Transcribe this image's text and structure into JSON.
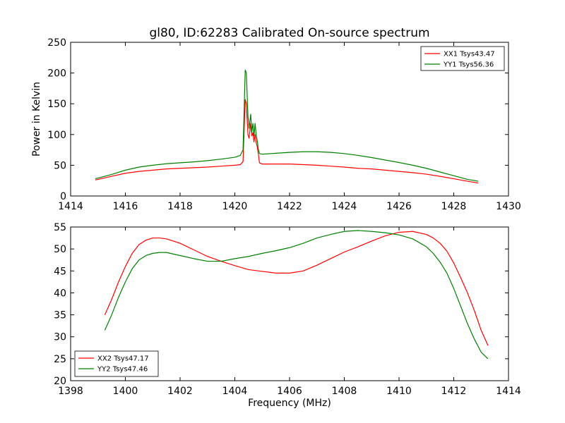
{
  "chart_data": [
    {
      "type": "line",
      "title": "gl80, ID:62283 Calibrated On-source spectrum",
      "xlabel": "",
      "ylabel": "Power in Kelvin",
      "xlim": [
        1414,
        1430
      ],
      "ylim": [
        0,
        250
      ],
      "xticks": [
        1414,
        1416,
        1418,
        1420,
        1422,
        1424,
        1426,
        1428,
        1430
      ],
      "yticks": [
        0,
        50,
        100,
        150,
        200,
        250
      ],
      "grid": false,
      "legend_position": "top-right",
      "series": [
        {
          "name": "XX1 Tsys43.47",
          "color": "#ff0000",
          "x": [
            1414.9,
            1415.5,
            1416,
            1416.5,
            1417,
            1417.5,
            1418,
            1418.5,
            1419,
            1419.5,
            1420,
            1420.2,
            1420.3,
            1420.38,
            1420.42,
            1420.48,
            1420.52,
            1420.58,
            1420.62,
            1420.66,
            1420.7,
            1420.74,
            1420.78,
            1420.82,
            1420.86,
            1420.9,
            1421,
            1421.5,
            1422,
            1422.5,
            1423,
            1423.5,
            1424,
            1424.5,
            1425,
            1425.5,
            1426,
            1426.5,
            1427,
            1427.5,
            1428,
            1428.5,
            1428.9
          ],
          "y": [
            26,
            32,
            37,
            40,
            42,
            44,
            45,
            46,
            47,
            48.5,
            50,
            51,
            56,
            157,
            150,
            100,
            94,
            118,
            98,
            103,
            88,
            100,
            87,
            80,
            68,
            54,
            52,
            52,
            52,
            51,
            50,
            48.5,
            47,
            45,
            44,
            42,
            40,
            38,
            35.5,
            32,
            28,
            24,
            21
          ]
        },
        {
          "name": "YY1 Tsys56.36",
          "color": "#008000",
          "x": [
            1414.9,
            1415.5,
            1416,
            1416.5,
            1417,
            1417.5,
            1418,
            1418.5,
            1419,
            1419.5,
            1420,
            1420.2,
            1420.3,
            1420.38,
            1420.42,
            1420.48,
            1420.52,
            1420.58,
            1420.62,
            1420.66,
            1420.7,
            1420.74,
            1420.78,
            1420.82,
            1420.86,
            1420.9,
            1421,
            1421.5,
            1422,
            1422.5,
            1423,
            1423.5,
            1424,
            1424.5,
            1425,
            1425.5,
            1426,
            1426.5,
            1427,
            1427.5,
            1428,
            1428.5,
            1428.9
          ],
          "y": [
            28,
            35,
            42,
            47,
            50,
            52.5,
            54,
            55.5,
            57.5,
            60,
            63,
            66,
            75,
            205,
            200,
            130,
            110,
            133,
            104,
            118,
            98,
            118,
            100,
            90,
            76,
            69,
            68,
            69.5,
            71,
            72,
            72,
            71,
            69,
            66,
            62.5,
            58.5,
            54.5,
            50,
            45,
            39,
            33,
            27,
            24
          ]
        }
      ]
    },
    {
      "type": "line",
      "title": "",
      "xlabel": "Frequency (MHz)",
      "ylabel": "",
      "xlim": [
        1398,
        1414
      ],
      "ylim": [
        20,
        55
      ],
      "xticks": [
        1398,
        1400,
        1402,
        1404,
        1406,
        1408,
        1410,
        1412,
        1414
      ],
      "yticks": [
        20,
        25,
        30,
        35,
        40,
        45,
        50,
        55
      ],
      "grid": false,
      "legend_position": "bottom-left",
      "series": [
        {
          "name": "XX2 Tsys47.17",
          "color": "#ff0000",
          "x": [
            1399.25,
            1399.5,
            1399.75,
            1400,
            1400.25,
            1400.5,
            1400.75,
            1401,
            1401.25,
            1401.5,
            1402,
            1402.5,
            1403,
            1403.5,
            1404,
            1404.5,
            1405,
            1405.5,
            1406,
            1406.5,
            1407,
            1407.5,
            1408,
            1408.5,
            1409,
            1409.5,
            1410,
            1410.5,
            1411,
            1411.25,
            1411.5,
            1411.75,
            1412,
            1412.25,
            1412.5,
            1412.75,
            1413,
            1413.25
          ],
          "y": [
            35,
            38.5,
            42.5,
            46,
            49,
            51,
            52,
            52.5,
            52.5,
            52.3,
            51.3,
            49.8,
            48.3,
            47.2,
            46.2,
            45.3,
            44.9,
            44.5,
            44.5,
            45,
            46.3,
            47.8,
            49.3,
            50.5,
            51.8,
            53,
            53.8,
            54,
            53.3,
            52.5,
            51.3,
            49.5,
            46.8,
            43.5,
            40,
            36,
            31.5,
            28
          ]
        },
        {
          "name": "YY2 Tsys47.46",
          "color": "#008000",
          "x": [
            1399.25,
            1399.5,
            1399.75,
            1400,
            1400.25,
            1400.5,
            1400.75,
            1401,
            1401.25,
            1401.5,
            1402,
            1402.5,
            1403,
            1403.5,
            1404,
            1404.5,
            1405,
            1405.5,
            1406,
            1406.5,
            1407,
            1407.5,
            1408,
            1408.5,
            1409,
            1409.5,
            1410,
            1410.5,
            1411,
            1411.25,
            1411.5,
            1411.75,
            1412,
            1412.25,
            1412.5,
            1412.75,
            1413,
            1413.25
          ],
          "y": [
            31.5,
            35,
            39,
            42.5,
            45.5,
            47.5,
            48.5,
            49,
            49.2,
            49.2,
            48.5,
            47.8,
            47.2,
            47.2,
            47.8,
            48.3,
            49,
            49.6,
            50.3,
            51.3,
            52.5,
            53.3,
            54,
            54.2,
            54,
            53.7,
            53.2,
            52.3,
            50.5,
            49,
            47,
            44.5,
            41,
            37,
            33,
            29.5,
            26.5,
            25
          ]
        }
      ]
    }
  ]
}
